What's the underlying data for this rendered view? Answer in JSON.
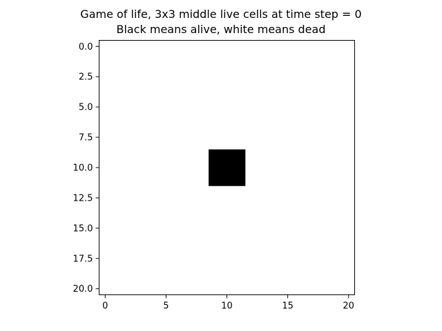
{
  "chart_data": {
    "type": "heatmap",
    "title_lines": [
      "Game of life, 3x3 middle live cells at time step = 0",
      "Black means alive, white means dead"
    ],
    "xlabel": "",
    "ylabel": "",
    "grid": false,
    "colormap": {
      "alive": "#000000",
      "dead": "#ffffff"
    },
    "grid_size": [
      21,
      21
    ],
    "alive_cells": [
      [
        9,
        9
      ],
      [
        9,
        10
      ],
      [
        9,
        11
      ],
      [
        10,
        9
      ],
      [
        10,
        10
      ],
      [
        10,
        11
      ],
      [
        11,
        9
      ],
      [
        11,
        10
      ],
      [
        11,
        11
      ]
    ],
    "xlim": [
      -0.5,
      20.5
    ],
    "ylim": [
      20.5,
      -0.5
    ],
    "x_ticks": [
      0,
      5,
      10,
      15,
      20
    ],
    "x_tick_labels": [
      "0",
      "5",
      "10",
      "15",
      "20"
    ],
    "y_ticks": [
      0.0,
      2.5,
      5.0,
      7.5,
      10.0,
      12.5,
      15.0,
      17.5,
      20.0
    ],
    "y_tick_labels": [
      "0.0",
      "2.5",
      "5.0",
      "7.5",
      "10.0",
      "12.5",
      "15.0",
      "17.5",
      "20.0"
    ]
  }
}
